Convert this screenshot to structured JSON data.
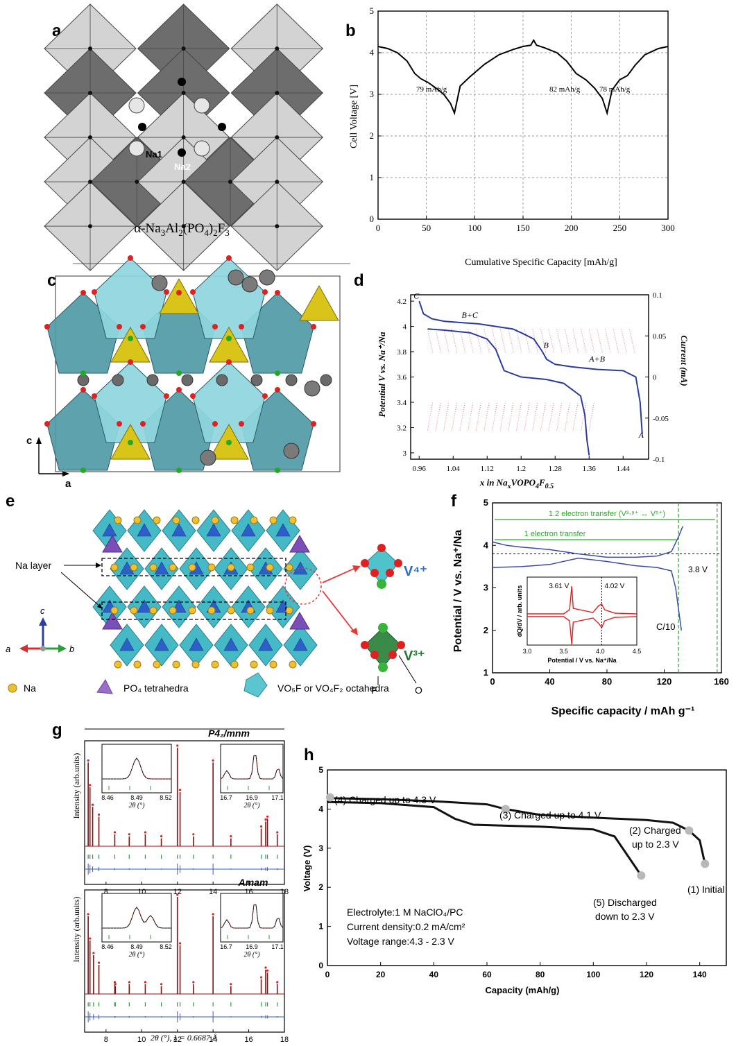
{
  "panels": {
    "a": {
      "letter": "a",
      "formula_parts": [
        "α-Na",
        "3",
        "Al",
        "2",
        "(PO",
        "4",
        ")",
        "2",
        "F",
        "3"
      ],
      "site_labels": [
        "Na1",
        "Na2"
      ]
    },
    "b": {
      "letter": "b",
      "ylabel": "Cell Voltage [V]",
      "xlabel": "Cumulative Specific Capacity [mAh/g]",
      "annotations": [
        "79 mAh/g",
        "82 mAh/g",
        "78 mAh/g"
      ]
    },
    "c": {
      "letter": "c",
      "axis_labels": [
        "c",
        "a"
      ]
    },
    "d": {
      "letter": "d",
      "ylabel_left": "Potential V vs. Na⁺/Na",
      "ylabel_right": "Current (mA)",
      "xlabel": "x in NaxVOPO4F0.5",
      "xlabel_parts": [
        "x in Na",
        "x",
        "VOPO",
        "4",
        "F",
        "0.5"
      ],
      "phase_labels": [
        "C",
        "B+C",
        "B",
        "A+B",
        "A"
      ]
    },
    "e": {
      "letter": "e",
      "layer_label": "Na layer",
      "axis_labels": [
        "c",
        "a",
        "b"
      ],
      "ion_labels": [
        "V⁴⁺",
        "V³⁺"
      ],
      "atom_labels": [
        "F",
        "O"
      ],
      "legend": [
        "Na",
        "PO₄ tetrahedra",
        "VO₅F or VO₄F₂ octahedra"
      ]
    },
    "f": {
      "letter": "f",
      "ylabel": "Potential / V vs. Na⁺/Na",
      "xlabel": "Specific capacity / mAh g⁻¹",
      "annotations": [
        "1.2 electron transfer (V³·⁸⁺ ↔ V⁵⁺)",
        "1 electron transfer",
        "3.8 V",
        "C/10"
      ],
      "inset": {
        "ylabel": "dQ/dV / arb. units",
        "xlabel": "Potential / V vs. Na⁺/Na",
        "peak_labels": [
          "3.61 V",
          "4.02 V"
        ]
      }
    },
    "g": {
      "letter": "g",
      "space_groups": [
        "P4₂/mnm",
        "Amam"
      ],
      "ylabel": "Intensity (arb.units)",
      "inset_xlabel": "2θ (°)",
      "xlabel": "2θ (°), λ = 0.6687 Å"
    },
    "h": {
      "letter": "h",
      "ylabel": "Voltage (V)",
      "xlabel": "Capacity (mAh/g)",
      "annotations": [
        "(4) Charged up to 4.3 V",
        "(3) Charged up to 4.1 V",
        "(2) Charged",
        "up to 2.3 V",
        "(1) Initial",
        "(5) Discharged",
        "down to 2.3 V"
      ],
      "info": [
        "Electrolyte:1 M NaClO₄/PC",
        "Current density:0.2 mA/cm²",
        "Voltage range:4.3 - 2.3 V"
      ]
    }
  },
  "chart_data": [
    {
      "panel": "b",
      "type": "line",
      "xlabel": "Cumulative Specific Capacity [mAh/g]",
      "ylabel": "Cell Voltage [V]",
      "xlim": [
        0,
        300
      ],
      "ylim": [
        0,
        5
      ],
      "xticks": [
        0,
        50,
        100,
        150,
        200,
        250,
        300
      ],
      "yticks": [
        0,
        1,
        2,
        3,
        4,
        5
      ],
      "grid": true,
      "series": [
        {
          "x": [
            0,
            10,
            20,
            30,
            38,
            44,
            52,
            60,
            68,
            75,
            79,
            85,
            95,
            110,
            125,
            140,
            150,
            158,
            161,
            164,
            172,
            185,
            195,
            205,
            215,
            224,
            232,
            237,
            242,
            250,
            258,
            266,
            276,
            290,
            300
          ],
          "y": [
            4.15,
            4.1,
            4.0,
            3.8,
            3.5,
            3.38,
            3.28,
            3.15,
            3.0,
            2.78,
            2.55,
            3.2,
            3.42,
            3.72,
            3.95,
            4.08,
            4.15,
            4.18,
            4.3,
            4.18,
            4.12,
            4.0,
            3.8,
            3.5,
            3.35,
            3.15,
            2.9,
            2.55,
            3.1,
            3.35,
            3.45,
            3.7,
            3.95,
            4.1,
            4.15
          ]
        }
      ],
      "annotations": [
        "79 mAh/g",
        "82 mAh/g",
        "78 mAh/g"
      ]
    },
    {
      "panel": "d",
      "type": "line",
      "xlabel": "x in NaxVOPO4F0.5",
      "ylabel": "Potential V vs. Na⁺/Na",
      "y2label": "Current (mA)",
      "xlim": [
        0.94,
        1.5
      ],
      "ylim": [
        2.95,
        4.25
      ],
      "y2lim": [
        -0.1,
        0.1
      ],
      "xticks": [
        0.96,
        1.04,
        1.12,
        1.2,
        1.28,
        1.36,
        1.44
      ],
      "yticks": [
        3,
        3.2,
        3.4,
        3.6,
        3.8,
        4,
        4.2
      ],
      "y2ticks": [
        -0.1,
        -0.05,
        0,
        0.05,
        0.1
      ],
      "series": [
        {
          "name": "charge",
          "x": [
            0.96,
            0.97,
            0.99,
            1.02,
            1.06,
            1.1,
            1.14,
            1.18,
            1.2,
            1.23,
            1.25,
            1.26,
            1.28,
            1.32,
            1.38,
            1.44,
            1.47,
            1.48,
            1.485
          ],
          "y": [
            4.2,
            4.1,
            4.06,
            4.04,
            4.03,
            4.02,
            4.0,
            3.98,
            3.95,
            3.9,
            3.8,
            3.74,
            3.7,
            3.68,
            3.66,
            3.65,
            3.6,
            3.4,
            3.15
          ]
        },
        {
          "name": "discharge",
          "x": [
            0.98,
            1.02,
            1.08,
            1.12,
            1.14,
            1.16,
            1.2,
            1.26,
            1.3,
            1.32,
            1.34,
            1.35,
            1.355,
            1.36
          ],
          "y": [
            3.98,
            3.97,
            3.95,
            3.9,
            3.82,
            3.65,
            3.6,
            3.58,
            3.55,
            3.5,
            3.45,
            3.3,
            3.1,
            2.98
          ]
        }
      ],
      "annotations": [
        "C",
        "B+C",
        "B",
        "A+B",
        "A"
      ]
    },
    {
      "panel": "f",
      "type": "line",
      "xlabel": "Specific capacity / mAh g⁻¹",
      "ylabel": "Potential / V vs. Na⁺/Na",
      "xlim": [
        0,
        160
      ],
      "ylim": [
        1,
        5
      ],
      "xticks": [
        0,
        40,
        80,
        120,
        160
      ],
      "yticks": [
        1,
        2,
        3,
        4,
        5
      ],
      "series": [
        {
          "name": "charge",
          "x": [
            0,
            10,
            20,
            40,
            60,
            80,
            100,
            115,
            125,
            130,
            133
          ],
          "y": [
            4.08,
            4.0,
            3.96,
            3.9,
            3.8,
            3.72,
            3.72,
            3.75,
            3.85,
            4.2,
            4.45
          ]
        },
        {
          "name": "discharge",
          "x": [
            0,
            20,
            40,
            60,
            80,
            100,
            115,
            125,
            128,
            130,
            132
          ],
          "y": [
            3.48,
            3.5,
            3.55,
            3.7,
            3.62,
            3.52,
            3.48,
            3.4,
            3.0,
            2.5,
            2.0
          ]
        }
      ],
      "reference_lines": {
        "y": 3.8,
        "x": [
          130,
          157
        ]
      },
      "inset": {
        "type": "line",
        "xlim": [
          3.0,
          4.5
        ],
        "xticks": [
          3.0,
          3.5,
          4.0,
          4.5
        ],
        "xlabel": "Potential / V vs. Na⁺/Na",
        "ylabel": "dQ/dV / arb. units",
        "peaks_V": [
          3.61,
          4.02
        ]
      },
      "annotations": [
        "1.2 electron transfer (V³·⁸⁺ ↔ V⁵⁺)",
        "1 electron transfer",
        "3.8 V",
        "C/10"
      ]
    },
    {
      "panel": "g",
      "type": "line",
      "xlabel": "2θ (°), λ = 0.6687 Å",
      "ylabel": "Intensity (arb.units)",
      "subplots": [
        {
          "title": "P4₂/mnm",
          "xlim": [
            6.8,
            18
          ],
          "xticks": [
            8,
            10,
            12,
            14,
            16,
            18
          ],
          "peaks_x": [
            7.0,
            7.1,
            7.25,
            7.6,
            8.49,
            9.3,
            10.2,
            11.1,
            12.0,
            12.15,
            12.9,
            14.0,
            15.0,
            16.7,
            16.95,
            17.05,
            17.6
          ],
          "peaks_h": [
            0.85,
            0.6,
            0.4,
            0.3,
            0.12,
            0.1,
            0.12,
            0.08,
            1.0,
            0.55,
            0.1,
            0.85,
            0.08,
            0.18,
            0.25,
            0.28,
            0.12
          ],
          "inset_xticks_left": [
            8.46,
            8.49,
            8.52
          ],
          "inset_xticks_right": [
            16.7,
            16.9,
            17.1
          ]
        },
        {
          "title": "Amam",
          "xlim": [
            6.8,
            18
          ],
          "xticks": [
            8,
            10,
            12,
            14,
            16,
            18
          ],
          "peaks_x": [
            7.0,
            7.1,
            7.3,
            7.6,
            8.49,
            8.52,
            9.3,
            10.2,
            11.1,
            12.0,
            12.15,
            12.9,
            14.0,
            15.0,
            16.7,
            16.95,
            17.05,
            17.6
          ],
          "peaks_h": [
            0.8,
            0.55,
            0.4,
            0.3,
            0.1,
            0.08,
            0.1,
            0.1,
            0.08,
            1.0,
            0.5,
            0.1,
            0.8,
            0.08,
            0.15,
            0.25,
            0.22,
            0.1
          ],
          "inset_xticks_left": [
            8.46,
            8.49,
            8.52
          ],
          "inset_xticks_right": [
            16.7,
            16.9,
            17.1
          ]
        }
      ]
    },
    {
      "panel": "h",
      "type": "line",
      "xlabel": "Capacity (mAh/g)",
      "ylabel": "Voltage (V)",
      "xlim": [
        0,
        150
      ],
      "ylim": [
        0,
        5
      ],
      "xticks": [
        0,
        20,
        40,
        60,
        80,
        100,
        120,
        140
      ],
      "yticks": [
        0,
        1,
        2,
        3,
        4,
        5
      ],
      "series": [
        {
          "name": "charge",
          "x": [
            0,
            20,
            40,
            60,
            67,
            80,
            100,
            120,
            130,
            136,
            140,
            142
          ],
          "y": [
            4.28,
            4.25,
            4.2,
            4.12,
            4.0,
            3.85,
            3.78,
            3.72,
            3.65,
            3.45,
            3.2,
            2.6
          ]
        },
        {
          "name": "discharge",
          "x": [
            0,
            20,
            40,
            48,
            55,
            80,
            100,
            108,
            112,
            116,
            118
          ],
          "y": [
            4.18,
            4.15,
            4.05,
            3.75,
            3.6,
            3.55,
            3.48,
            3.3,
            2.9,
            2.5,
            2.3
          ]
        }
      ],
      "points": [
        {
          "label": "(1) Initial",
          "x": 142,
          "y": 2.6
        },
        {
          "label": "(2) Charged up to 2.3 V",
          "x": 136,
          "y": 3.45
        },
        {
          "label": "(3) Charged up to 4.1 V",
          "x": 67,
          "y": 4.0
        },
        {
          "label": "(4) Charged up to 4.3 V",
          "x": 1,
          "y": 4.3
        },
        {
          "label": "(5) Discharged down to 2.3 V",
          "x": 118,
          "y": 2.3
        }
      ]
    }
  ]
}
